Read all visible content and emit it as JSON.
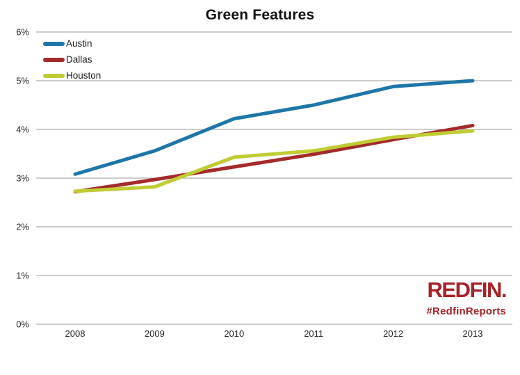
{
  "title": "Green Features",
  "branding": {
    "logo_text": "REDFIN.",
    "hashtag": "#RedfinReports",
    "color": "#A52228"
  },
  "chart_data": {
    "type": "line",
    "title": "Green Features",
    "categories": [
      "2008",
      "2009",
      "2010",
      "2011",
      "2012",
      "2013"
    ],
    "series": [
      {
        "name": "Austin",
        "color": "#1E76A8",
        "values": [
          3.08,
          3.56,
          4.22,
          4.5,
          4.88,
          5.0
        ]
      },
      {
        "name": "Dallas",
        "color": "#A42A2B",
        "values": [
          2.72,
          2.97,
          3.23,
          3.49,
          3.79,
          4.08
        ]
      },
      {
        "name": "Houston",
        "color": "#C0CC33",
        "values": [
          2.73,
          2.82,
          3.43,
          3.56,
          3.84,
          3.97
        ]
      }
    ],
    "ylim": [
      0,
      6
    ],
    "yticks": [
      {
        "value": 0,
        "label": "0%"
      },
      {
        "value": 1,
        "label": "1%"
      },
      {
        "value": 2,
        "label": "2%"
      },
      {
        "value": 3,
        "label": "3%"
      },
      {
        "value": 4,
        "label": "4%"
      },
      {
        "value": 5,
        "label": "5%"
      },
      {
        "value": 6,
        "label": "6%"
      }
    ],
    "grid": "horizontal",
    "gridline_color": "#999999",
    "tick_label_color": "#262626",
    "legend_position": "top-left",
    "xlabel": "",
    "ylabel": ""
  }
}
